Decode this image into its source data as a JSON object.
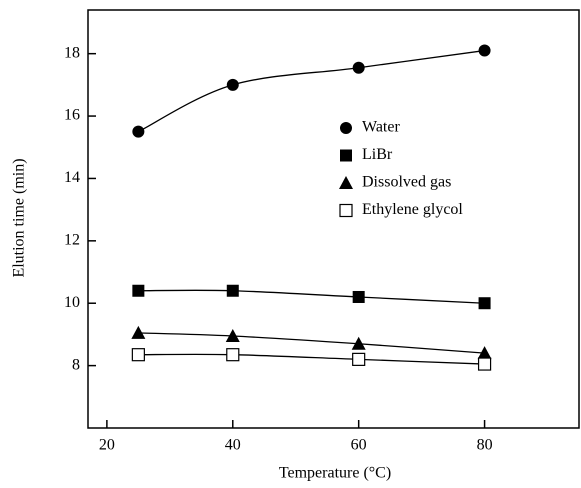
{
  "chart_data": {
    "type": "line",
    "x_label": "Temperature (°C)",
    "y_label": "Elution time (min)",
    "x": [
      25,
      40,
      60,
      80
    ],
    "series": [
      {
        "name": "Water",
        "color": "#000000",
        "marker": "circle",
        "values": [
          15.5,
          17.0,
          17.55,
          18.1
        ]
      },
      {
        "name": "LiBr",
        "color": "#000000",
        "marker": "square",
        "values": [
          10.4,
          10.4,
          10.2,
          10.0
        ]
      },
      {
        "name": "Dissolved gas",
        "color": "#000000",
        "marker": "triangle",
        "values": [
          9.05,
          8.95,
          8.7,
          8.4
        ]
      },
      {
        "name": "Ethylene glycol",
        "color": "#000000",
        "marker": "open-square",
        "values": [
          8.35,
          8.35,
          8.2,
          8.05
        ]
      }
    ],
    "xlim": [
      17,
      95
    ],
    "xticks": [
      20,
      40,
      60,
      80
    ],
    "ylim": [
      6,
      19.4
    ],
    "yticks": [
      8,
      10,
      12,
      14,
      16,
      18
    ],
    "legend": "upper right",
    "grid": false
  }
}
